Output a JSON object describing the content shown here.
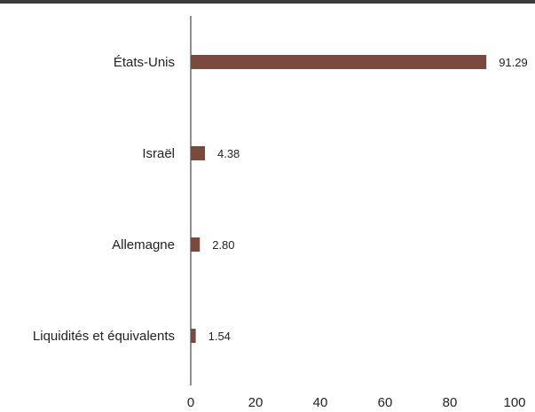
{
  "chart_data": {
    "type": "bar",
    "orientation": "horizontal",
    "categories": [
      "États-Unis",
      "Israël",
      "Allemagne",
      "Liquidités et équivalents"
    ],
    "values": [
      91.29,
      4.38,
      2.8,
      1.54
    ],
    "value_labels": [
      "91.29",
      "4.38",
      "2.80",
      "1.54"
    ],
    "xlim": [
      0,
      100
    ],
    "x_ticks": [
      "0",
      "20",
      "40",
      "60",
      "80",
      "100"
    ],
    "title": "",
    "xlabel": "",
    "ylabel": "",
    "grid": false,
    "bar_color": "#7a4a3e"
  }
}
